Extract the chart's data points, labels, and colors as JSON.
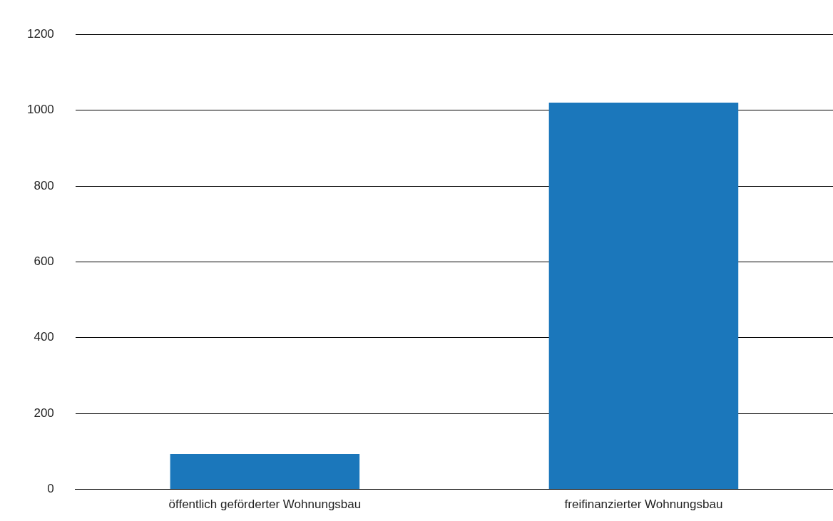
{
  "chart_data": {
    "type": "bar",
    "categories": [
      "öffentlich geförderter Wohnungsbau",
      "freifinanzierter Wohnungsbau"
    ],
    "values": [
      93,
      1020
    ],
    "color": "#1b77bb",
    "ylim": [
      0,
      1200
    ],
    "yticks": [
      0,
      200,
      400,
      600,
      800,
      1000,
      1200
    ],
    "grid": "y"
  }
}
